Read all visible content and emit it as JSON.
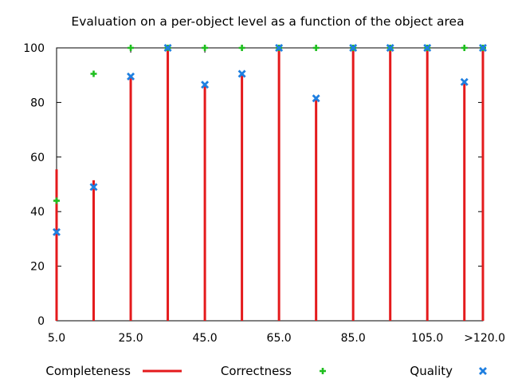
{
  "chart_data": {
    "type": "scatter",
    "title": "Evaluation on a per-object level as a function of the object area",
    "xlabel": "",
    "ylabel": "",
    "xlim": [
      5,
      120
    ],
    "ylim": [
      0,
      100
    ],
    "x_ticks": [
      {
        "value": 5,
        "label": "5.0"
      },
      {
        "value": 25,
        "label": "25.0"
      },
      {
        "value": 45,
        "label": "45.0"
      },
      {
        "value": 65,
        "label": "65.0"
      },
      {
        "value": 85,
        "label": "85.0"
      },
      {
        "value": 105,
        "label": "105.0"
      },
      {
        "value": 120,
        "label": ">120.0"
      }
    ],
    "y_ticks": [
      {
        "value": 0,
        "label": "0"
      },
      {
        "value": 20,
        "label": "20"
      },
      {
        "value": 40,
        "label": "40"
      },
      {
        "value": 60,
        "label": "60"
      },
      {
        "value": 80,
        "label": "80"
      },
      {
        "value": 100,
        "label": "100"
      }
    ],
    "x": [
      5,
      15,
      25,
      35,
      45,
      55,
      65,
      75,
      85,
      95,
      105,
      115,
      120
    ],
    "series": [
      {
        "name": "Completeness",
        "style": "impulses",
        "color": "#e41a1c",
        "values": [
          55.5,
          51.5,
          89.5,
          100,
          87,
          91,
          100,
          82,
          100,
          100,
          100,
          87.5,
          100
        ]
      },
      {
        "name": "Correctness",
        "style": "plus",
        "color": "#1fbf1f",
        "values": [
          44,
          90.5,
          100,
          100,
          100,
          100,
          100,
          100,
          100,
          100,
          100,
          100,
          100
        ]
      },
      {
        "name": "Quality",
        "style": "cross",
        "color": "#1f7fe0",
        "values": [
          32.5,
          49,
          89.5,
          100,
          86.5,
          90.5,
          100,
          81.5,
          100,
          100,
          100,
          87.5,
          100
        ]
      }
    ],
    "grid": false,
    "legend_position": "bottom"
  }
}
